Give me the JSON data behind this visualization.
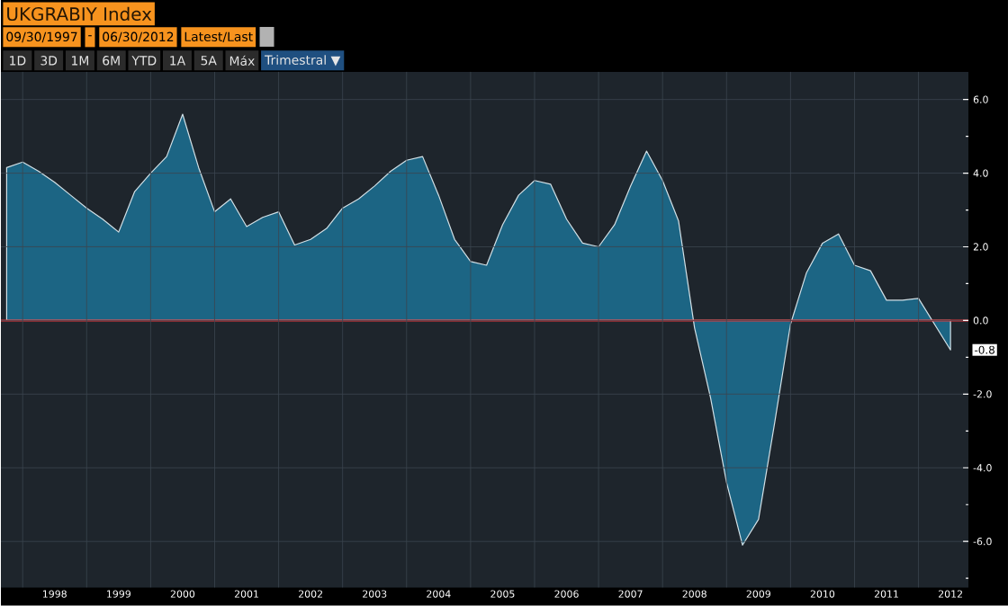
{
  "chart_data": {
    "type": "area",
    "title": "UKGRABIY Index",
    "annotations": [
      "09/30/1997",
      "-",
      "06/30/2012",
      "Latest/Last",
      "1D",
      "3D",
      "1M",
      "6M",
      "YTD",
      "1A",
      "5A",
      "Máx",
      "Trimestral ▼",
      {
        "text": "-0.8",
        "x": 2012.5,
        "y": -0.8
      }
    ],
    "x": [
      1997.75,
      1998.0,
      1998.25,
      1998.5,
      1998.75,
      1999.0,
      1999.25,
      1999.5,
      1999.75,
      2000.0,
      2000.25,
      2000.5,
      2000.75,
      2001.0,
      2001.25,
      2001.5,
      2001.75,
      2002.0,
      2002.25,
      2002.5,
      2002.75,
      2003.0,
      2003.25,
      2003.5,
      2003.75,
      2004.0,
      2004.25,
      2004.5,
      2004.75,
      2005.0,
      2005.25,
      2005.5,
      2005.75,
      2006.0,
      2006.25,
      2006.5,
      2006.75,
      2007.0,
      2007.25,
      2007.5,
      2007.75,
      2008.0,
      2008.25,
      2008.5,
      2008.75,
      2009.0,
      2009.25,
      2009.5,
      2009.75,
      2010.0,
      2010.25,
      2010.5,
      2010.75,
      2011.0,
      2011.25,
      2011.5,
      2011.75,
      2012.0,
      2012.25,
      2012.5
    ],
    "series": [
      {
        "color": "#1c6584",
        "values": [
          4.15,
          4.3,
          4.05,
          3.75,
          3.4,
          3.05,
          2.75,
          2.4,
          3.5,
          4.0,
          4.45,
          5.6,
          4.15,
          2.95,
          3.3,
          2.55,
          2.8,
          2.95,
          2.05,
          2.2,
          2.5,
          3.05,
          3.3,
          3.65,
          4.05,
          4.35,
          4.45,
          3.4,
          2.2,
          1.6,
          1.5,
          2.6,
          3.4,
          3.8,
          3.7,
          2.75,
          2.1,
          2.0,
          2.6,
          3.65,
          4.6,
          3.8,
          2.7,
          -0.2,
          -2.1,
          -4.4,
          -6.1,
          -5.4,
          -2.8,
          -0.1,
          1.3,
          2.1,
          2.35,
          1.5,
          1.35,
          0.55,
          0.55,
          0.6,
          -0.1,
          -0.8
        ]
      }
    ],
    "xlim": [
      1997.66,
      2012.78
    ],
    "xticks": [
      {
        "value": 1998,
        "label": null
      },
      {
        "value": 1999,
        "label": null
      },
      {
        "value": 2000,
        "label": null
      },
      {
        "value": 2001,
        "label": null
      },
      {
        "value": 2002,
        "label": null
      },
      {
        "value": 2003,
        "label": null
      },
      {
        "value": 2004,
        "label": null
      },
      {
        "value": 2005,
        "label": null
      },
      {
        "value": 2006,
        "label": null
      },
      {
        "value": 2007,
        "label": null
      },
      {
        "value": 2008,
        "label": null
      },
      {
        "value": 2009,
        "label": null
      },
      {
        "value": 2010,
        "label": null
      },
      {
        "value": 2011,
        "label": null
      },
      {
        "value": 2012,
        "label": null
      },
      {
        "value": 1998.5,
        "label": "1998"
      },
      {
        "value": 1999.5,
        "label": "1999"
      },
      {
        "value": 2000.5,
        "label": "2000"
      },
      {
        "value": 2001.5,
        "label": "2001"
      },
      {
        "value": 2002.5,
        "label": "2002"
      },
      {
        "value": 2003.5,
        "label": "2003"
      },
      {
        "value": 2004.5,
        "label": "2004"
      },
      {
        "value": 2005.5,
        "label": "2005"
      },
      {
        "value": 2006.5,
        "label": "2006"
      },
      {
        "value": 2007.5,
        "label": "2007"
      },
      {
        "value": 2008.5,
        "label": "2008"
      },
      {
        "value": 2009.5,
        "label": "2009"
      },
      {
        "value": 2010.5,
        "label": "2010"
      },
      {
        "value": 2011.5,
        "label": "2011"
      },
      {
        "value": 2012.5,
        "label": "2012"
      }
    ],
    "ylim": [
      -7.25,
      6.75
    ],
    "yticks": [
      {
        "value": 6,
        "label": "6.0"
      },
      {
        "value": 5,
        "label": null
      },
      {
        "value": 4,
        "label": "4.0"
      },
      {
        "value": 3,
        "label": null
      },
      {
        "value": 2,
        "label": "2.0"
      },
      {
        "value": 1,
        "label": null
      },
      {
        "value": 0,
        "label": "0.0"
      },
      {
        "value": -1,
        "label": null
      },
      {
        "value": -2,
        "label": "-2.0"
      },
      {
        "value": -3,
        "label": null
      },
      {
        "value": -4,
        "label": "-4.0"
      },
      {
        "value": -5,
        "label": null
      },
      {
        "value": -6,
        "label": "-6.0"
      },
      {
        "value": -7,
        "label": null
      }
    ],
    "ref_lines": [
      {
        "axis": "y",
        "value": 0,
        "color": "#e8383c"
      }
    ],
    "grid": true
  }
}
